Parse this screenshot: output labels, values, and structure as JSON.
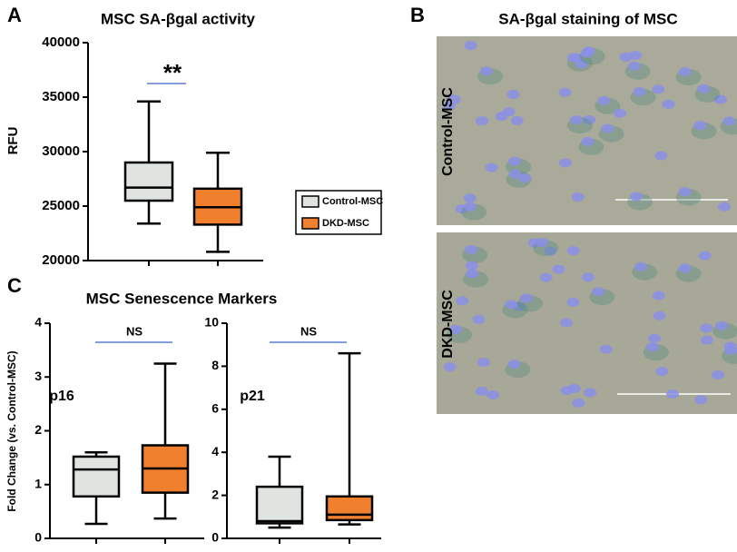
{
  "panels": [
    "A",
    "B",
    "C"
  ],
  "chart_data": [
    {
      "type": "box",
      "title": "MSC SA-βgal activity",
      "ylabel": "RFU",
      "ylim": [
        20000,
        40000
      ],
      "yticks": [
        20000,
        25000,
        30000,
        35000,
        40000
      ],
      "annotations": [
        "**"
      ],
      "legend": "right",
      "series": [
        {
          "name": "Control-MSC",
          "color": "#dfe4e1",
          "min": 23400,
          "q1": 25500,
          "median": 26700,
          "q3": 29000,
          "max": 34600
        },
        {
          "name": "DKD-MSC",
          "color": "#f07f2e",
          "min": 20800,
          "q1": 23300,
          "median": 24900,
          "q3": 26600,
          "max": 29900
        }
      ]
    },
    {
      "type": "box",
      "title": "MSC Senescence Markers",
      "ylabel": "Fold Change (vs. Control-MSC)",
      "ylim": [
        0,
        4
      ],
      "yticks": [
        0,
        1,
        2,
        3,
        4
      ],
      "annotations": [
        "p16",
        "NS"
      ],
      "series": [
        {
          "color": "#dfe4e1",
          "min": 0.27,
          "q1": 0.78,
          "median": 1.28,
          "q3": 1.52,
          "max": 1.6
        },
        {
          "color": "#f07f2e",
          "min": 0.37,
          "q1": 0.85,
          "median": 1.3,
          "q3": 1.73,
          "max": 3.25
        }
      ]
    },
    {
      "type": "box",
      "ylim": [
        0,
        10
      ],
      "yticks": [
        0,
        2,
        4,
        6,
        8,
        10
      ],
      "annotations": [
        "p21",
        "NS"
      ],
      "series": [
        {
          "color": "#dfe4e1",
          "min": 0.5,
          "q1": 0.7,
          "median": 0.8,
          "q3": 2.4,
          "max": 3.8
        },
        {
          "color": "#f07f2e",
          "min": 0.65,
          "q1": 0.85,
          "median": 1.1,
          "q3": 1.95,
          "max": 8.6
        }
      ]
    }
  ],
  "images": {
    "title": "SA-βgal staining of MSC",
    "labels": [
      "Control-MSC",
      "DKD-MSC"
    ]
  }
}
